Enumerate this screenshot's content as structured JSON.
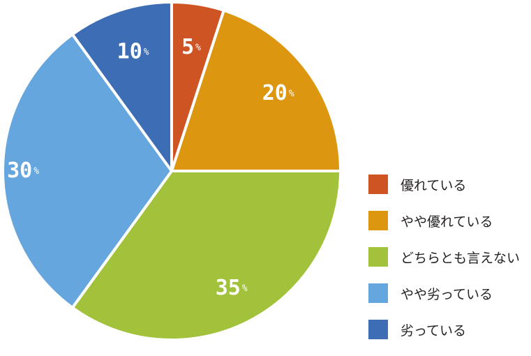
{
  "chart_data": {
    "type": "pie",
    "categories": [
      "優れている",
      "やや優れている",
      "どちらとも言えない",
      "やや劣っている",
      "劣っている"
    ],
    "values": [
      5,
      20,
      35,
      30,
      10
    ],
    "value_labels": [
      "5",
      "20",
      "35",
      "30",
      "10"
    ],
    "unit": "%",
    "colors": [
      "#cf5424",
      "#dc960f",
      "#a1c23a",
      "#66a6de",
      "#3c6db5"
    ],
    "start_angle": "12 o'clock",
    "direction": "clockwise",
    "legend_position": "bottom-right"
  }
}
